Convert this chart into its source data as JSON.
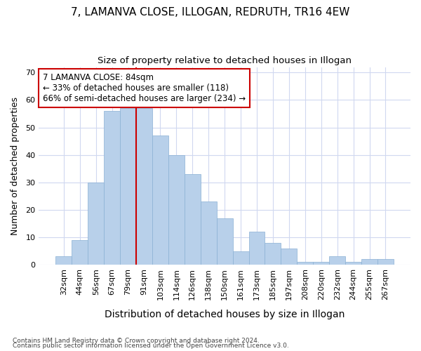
{
  "title1": "7, LAMANVA CLOSE, ILLOGAN, REDRUTH, TR16 4EW",
  "title2": "Size of property relative to detached houses in Illogan",
  "xlabel": "Distribution of detached houses by size in Illogan",
  "ylabel": "Number of detached properties",
  "categories": [
    "32sqm",
    "44sqm",
    "56sqm",
    "67sqm",
    "79sqm",
    "91sqm",
    "103sqm",
    "114sqm",
    "126sqm",
    "138sqm",
    "150sqm",
    "161sqm",
    "173sqm",
    "185sqm",
    "197sqm",
    "208sqm",
    "220sqm",
    "232sqm",
    "244sqm",
    "255sqm",
    "267sqm"
  ],
  "values": [
    3,
    9,
    30,
    56,
    57,
    57,
    47,
    40,
    33,
    23,
    17,
    5,
    12,
    8,
    6,
    1,
    1,
    3,
    1,
    2,
    2
  ],
  "bar_color": "#b8d0ea",
  "bar_edge_color": "#8ab0d4",
  "bg_color": "#ffffff",
  "grid_color": "#d0d8f0",
  "vline_x": 4.5,
  "vline_color": "#cc0000",
  "annotation_text": "7 LAMANVA CLOSE: 84sqm\n← 33% of detached houses are smaller (118)\n66% of semi-detached houses are larger (234) →",
  "annotation_box_color": "white",
  "annotation_box_edge": "#cc0000",
  "ylim": [
    0,
    72
  ],
  "yticks": [
    0,
    10,
    20,
    30,
    40,
    50,
    60,
    70
  ],
  "footer1": "Contains HM Land Registry data © Crown copyright and database right 2024.",
  "footer2": "Contains public sector information licensed under the Open Government Licence v3.0."
}
